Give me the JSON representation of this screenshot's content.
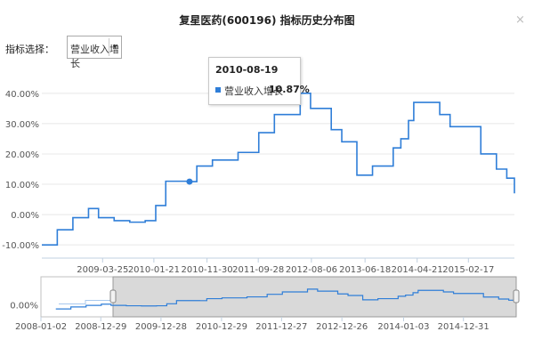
{
  "window": {
    "title": "复星医药(600196) 指标历史分布图",
    "close_icon": "close-icon",
    "close_glyph": "×"
  },
  "selector": {
    "label": "指标选择：",
    "value": "营业收入增长",
    "arrow_glyph": "▾"
  },
  "tooltip": {
    "date": "2010-08-19",
    "series": "营业收入增长",
    "value": "10.87%"
  },
  "colors": {
    "line": "#2f7ed8",
    "navigator_fill": "#d9d9d9",
    "axis": "#c0d0e0"
  },
  "chart_data": [
    {
      "type": "line",
      "series": [
        {
          "name": "营业收入增长"
        }
      ],
      "y_ticks": [
        "-10.00%",
        "0.00%",
        "10.00%",
        "20.00%",
        "30.00%",
        "40.00%"
      ],
      "y_tick_values": [
        -10,
        0,
        10,
        20,
        30,
        40
      ],
      "ylim": [
        -12,
        42
      ],
      "x_ticks": [
        "2009-03-25",
        "2010-01-21",
        "2010-11-30",
        "2011-09-28",
        "2012-08-06",
        "2013-06-18",
        "2014-04-21",
        "2015-02-17"
      ],
      "x_tick_dates": [
        "2009-03-25",
        "2010-01-21",
        "2010-11-30",
        "2011-09-28",
        "2012-08-06",
        "2013-06-18",
        "2014-04-21",
        "2015-02-17"
      ],
      "points": [
        [
          "2008-04-01",
          -10
        ],
        [
          "2008-07-01",
          -5
        ],
        [
          "2008-10-01",
          -1
        ],
        [
          "2009-01-01",
          2
        ],
        [
          "2009-03-01",
          -1
        ],
        [
          "2009-06-01",
          -2
        ],
        [
          "2009-09-01",
          -2.5
        ],
        [
          "2009-12-01",
          -2
        ],
        [
          "2010-02-01",
          3
        ],
        [
          "2010-04-01",
          11
        ],
        [
          "2010-08-19",
          10.87
        ],
        [
          "2010-10-01",
          16
        ],
        [
          "2011-01-01",
          18
        ],
        [
          "2011-06-01",
          20.5
        ],
        [
          "2011-10-01",
          27
        ],
        [
          "2012-01-01",
          33
        ],
        [
          "2012-06-01",
          40
        ],
        [
          "2012-08-01",
          35
        ],
        [
          "2012-12-01",
          28
        ],
        [
          "2013-02-01",
          24
        ],
        [
          "2013-05-01",
          13
        ],
        [
          "2013-08-01",
          16
        ],
        [
          "2013-12-01",
          22
        ],
        [
          "2014-01-15",
          25
        ],
        [
          "2014-03-01",
          31
        ],
        [
          "2014-04-01",
          37
        ],
        [
          "2014-09-01",
          33
        ],
        [
          "2014-11-01",
          29
        ],
        [
          "2015-05-01",
          20
        ],
        [
          "2015-08-01",
          15
        ],
        [
          "2015-10-01",
          12
        ],
        [
          "2015-11-15",
          7
        ]
      ],
      "highlight": {
        "date": "2010-08-19",
        "value": 10.87
      }
    },
    {
      "type": "area",
      "role": "navigator",
      "y_ticks": [
        "0.00%"
      ],
      "x_ticks": [
        "2008-01-02",
        "2008-12-29",
        "2009-12-28",
        "2010-12-29",
        "2011-12-27",
        "2012-12-26",
        "2014-01-03",
        "2014-12-31"
      ],
      "x_tick_dates": [
        "2008-01-02",
        "2008-12-29",
        "2009-12-28",
        "2010-12-29",
        "2011-12-27",
        "2012-12-26",
        "2014-01-03",
        "2014-12-31"
      ],
      "selected_range": [
        "2008-04-01",
        "2015-11-15"
      ]
    }
  ]
}
